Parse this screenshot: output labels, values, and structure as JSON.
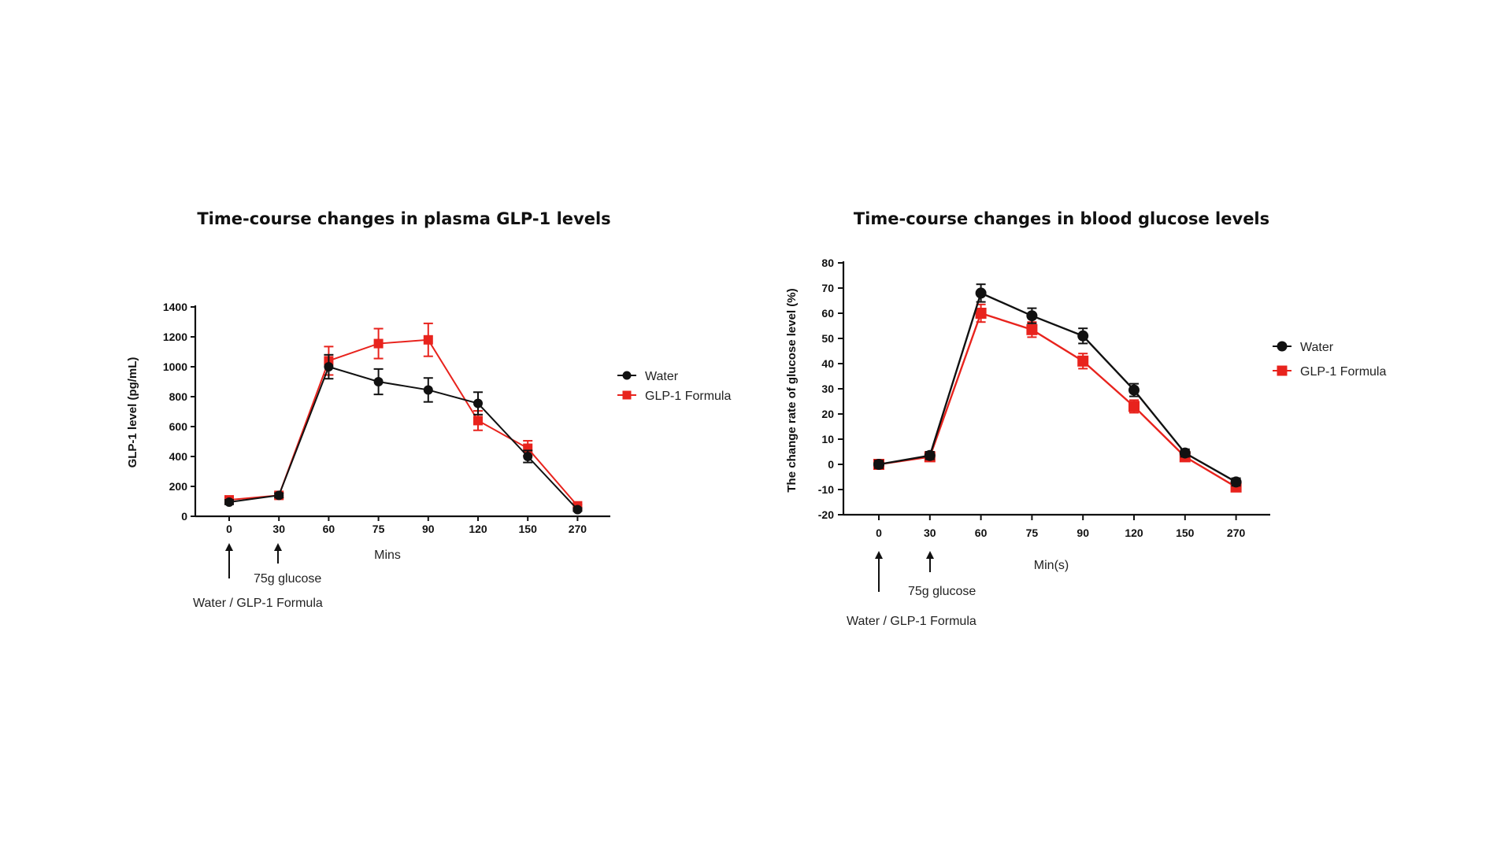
{
  "chart_data": [
    {
      "type": "line",
      "title": "Time-course changes in plasma GLP-1 levels",
      "xlabel": "Mins",
      "ylabel": "GLP-1 level (pg/mL)",
      "categories": [
        "0",
        "30",
        "60",
        "75",
        "90",
        "120",
        "150",
        "270"
      ],
      "ylim": [
        0,
        1400
      ],
      "yticks": [
        "0",
        "200",
        "400",
        "600",
        "800",
        "1000",
        "1200",
        "1400"
      ],
      "series": [
        {
          "name": "Water",
          "color": "#111111",
          "marker": "circle",
          "values": [
            95,
            140,
            1000,
            900,
            845,
            755,
            400,
            45
          ],
          "errors": [
            15,
            15,
            80,
            85,
            80,
            75,
            40,
            10
          ]
        },
        {
          "name": "GLP-1 Formula",
          "color": "#e8231d",
          "marker": "square",
          "values": [
            110,
            140,
            1040,
            1155,
            1180,
            640,
            455,
            70
          ],
          "errors": [
            15,
            15,
            95,
            100,
            110,
            65,
            50,
            10
          ]
        }
      ],
      "legend_position": "right",
      "annotations": [
        {
          "text": "75g glucose",
          "arrow_at": "30"
        },
        {
          "text": "Water / GLP-1 Formula",
          "arrow_at": "0"
        }
      ]
    },
    {
      "type": "line",
      "title": "Time-course changes in blood glucose levels",
      "xlabel": "Min(s)",
      "ylabel": "The change rate of glucose level (%)",
      "categories": [
        "0",
        "30",
        "60",
        "75",
        "90",
        "120",
        "150",
        "270"
      ],
      "ylim": [
        -20,
        80
      ],
      "yticks": [
        "-20",
        "-10",
        "0",
        "10",
        "20",
        "30",
        "40",
        "50",
        "60",
        "70",
        "80"
      ],
      "series": [
        {
          "name": "Water",
          "color": "#111111",
          "marker": "circle",
          "values": [
            0,
            3.5,
            68,
            59,
            51,
            29.5,
            4.5,
            -7
          ],
          "errors": [
            1.5,
            1.5,
            3.5,
            3,
            3,
            2.5,
            1.5,
            1.5
          ]
        },
        {
          "name": "GLP-1 Formula",
          "color": "#e8231d",
          "marker": "square",
          "values": [
            0,
            3,
            60,
            53.5,
            41,
            23,
            3,
            -9
          ],
          "errors": [
            1.5,
            1.5,
            3.5,
            3,
            3,
            2.5,
            1.5,
            1.5
          ]
        }
      ],
      "legend_position": "right",
      "annotations": [
        {
          "text": "75g glucose",
          "arrow_at": "30"
        },
        {
          "text": "Water / GLP-1 Formula",
          "arrow_at": "0"
        }
      ]
    }
  ]
}
